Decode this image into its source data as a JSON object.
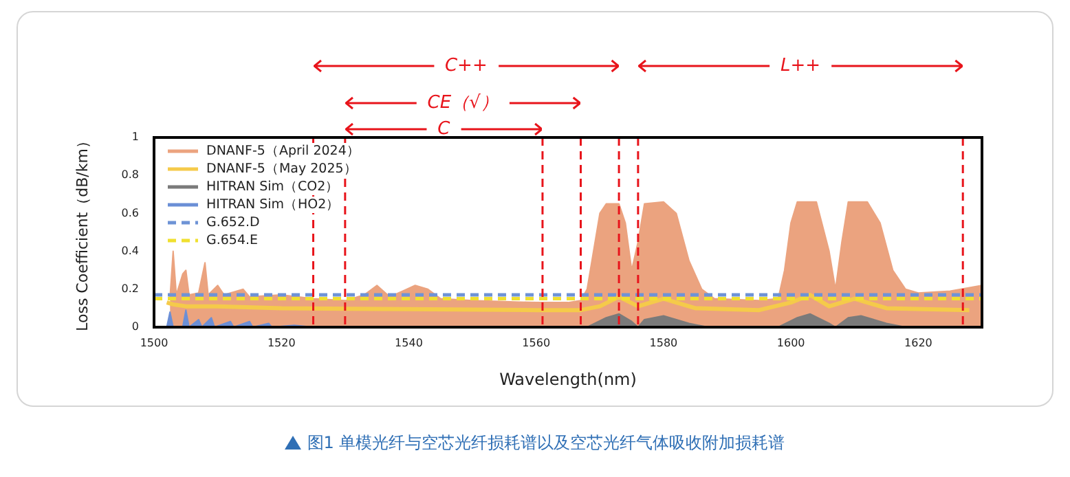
{
  "chart_data": {
    "type": "area",
    "xlabel": "Wavelength(nm)",
    "ylabel": "Loss Coefficient（dB/km）",
    "xlim": [
      1500,
      1630
    ],
    "xticks": [
      1500,
      1520,
      1540,
      1560,
      1580,
      1600,
      1620
    ],
    "ylim": [
      0,
      1
    ],
    "yticks": [
      0,
      0.2,
      0.4,
      0.6,
      0.8,
      1
    ],
    "grid": false,
    "legend": "top left",
    "series": [
      {
        "name": "DNANF-5（April 2024）",
        "type": "area",
        "color": "#eba37f",
        "x": [
          1502.5,
          1503,
          1503.5,
          1504.5,
          1505,
          1505.5,
          1507,
          1508,
          1508.5,
          1510,
          1511,
          1514,
          1515,
          1520,
          1525,
          1530,
          1533,
          1535,
          1537,
          1539,
          1541,
          1543,
          1545,
          1550,
          1560,
          1565,
          1567,
          1568,
          1569,
          1570,
          1571,
          1573,
          1574,
          1575,
          1576,
          1577,
          1580,
          1582,
          1584,
          1586,
          1588,
          1595,
          1598,
          1599,
          1600,
          1601,
          1604,
          1606,
          1607,
          1608,
          1609,
          1612,
          1614,
          1616,
          1618,
          1620,
          1625,
          1630
        ],
        "values": [
          0.15,
          0.4,
          0.17,
          0.28,
          0.3,
          0.17,
          0.18,
          0.34,
          0.17,
          0.22,
          0.17,
          0.2,
          0.16,
          0.17,
          0.15,
          0.14,
          0.17,
          0.22,
          0.16,
          0.19,
          0.22,
          0.2,
          0.15,
          0.14,
          0.13,
          0.13,
          0.14,
          0.2,
          0.4,
          0.6,
          0.65,
          0.65,
          0.55,
          0.3,
          0.45,
          0.65,
          0.66,
          0.6,
          0.35,
          0.2,
          0.15,
          0.14,
          0.15,
          0.3,
          0.55,
          0.66,
          0.66,
          0.4,
          0.2,
          0.45,
          0.66,
          0.66,
          0.55,
          0.3,
          0.2,
          0.18,
          0.19,
          0.22
        ]
      },
      {
        "name": "DNANF-5（May 2025）",
        "type": "line",
        "color": "#f5ca4a",
        "x": [
          1502,
          1503,
          1505,
          1510,
          1520,
          1540,
          1560,
          1567,
          1570,
          1573,
          1576,
          1580,
          1585,
          1595,
          1600,
          1603,
          1606,
          1610,
          1615,
          1628
        ],
        "values": [
          0.13,
          0.12,
          0.11,
          0.11,
          0.1,
          0.095,
          0.09,
          0.09,
          0.11,
          0.16,
          0.11,
          0.15,
          0.1,
          0.09,
          0.13,
          0.17,
          0.11,
          0.15,
          0.1,
          0.09
        ]
      },
      {
        "name": "HITRAN Sim（CO2）",
        "type": "area",
        "color": "#7a7a7a",
        "x": [
          1500,
          1568,
          1571,
          1573,
          1575,
          1576,
          1577,
          1580,
          1584,
          1587,
          1598,
          1601,
          1603,
          1606,
          1607,
          1609,
          1611,
          1615,
          1618,
          1630
        ],
        "values": [
          0,
          0,
          0.05,
          0.07,
          0.03,
          0,
          0.04,
          0.06,
          0.02,
          0,
          0,
          0.05,
          0.07,
          0.02,
          0,
          0.05,
          0.06,
          0.02,
          0,
          0
        ]
      },
      {
        "name": "HITRAN Sim（HO2）",
        "type": "area",
        "color": "#6b8fd6",
        "x": [
          1500,
          1502,
          1502.5,
          1503,
          1504.5,
          1505,
          1505.5,
          1507,
          1507.5,
          1509,
          1509.5,
          1512,
          1512.5,
          1515,
          1515.5,
          1518,
          1518.5,
          1522,
          1525
        ],
        "values": [
          0,
          0,
          0.08,
          0,
          0,
          0.09,
          0,
          0.04,
          0,
          0.05,
          0,
          0.03,
          0,
          0.03,
          0,
          0.02,
          0,
          0.01,
          0
        ]
      },
      {
        "name": "G.652.D",
        "type": "line",
        "line_style": "dashed",
        "color": "#6e93d6",
        "x": [
          1500,
          1630
        ],
        "values": [
          0.17,
          0.17
        ]
      },
      {
        "name": "G.654.E",
        "type": "line",
        "line_style": "dashed",
        "color": "#f0e030",
        "x": [
          1500,
          1630
        ],
        "values": [
          0.15,
          0.15
        ]
      }
    ],
    "ref_lines": [
      {
        "axis": "x",
        "value": 1525,
        "color": "#e8141b",
        "line_style": "dashed"
      },
      {
        "axis": "x",
        "value": 1530,
        "color": "#e8141b",
        "line_style": "dashed"
      },
      {
        "axis": "x",
        "value": 1561,
        "color": "#e8141b",
        "line_style": "dashed"
      },
      {
        "axis": "x",
        "value": 1567,
        "color": "#e8141b",
        "line_style": "dashed"
      },
      {
        "axis": "x",
        "value": 1573,
        "color": "#e8141b",
        "line_style": "dashed"
      },
      {
        "axis": "x",
        "value": 1576,
        "color": "#e8141b",
        "line_style": "dashed"
      },
      {
        "axis": "x",
        "value": 1627,
        "color": "#e8141b",
        "line_style": "dashed"
      }
    ],
    "annotations": [
      "C++",
      "L++",
      "CE（√）",
      "C",
      "图1  单模光纤与空芯光纤损耗谱以及空芯光纤气体吸收附加损耗谱"
    ]
  }
}
